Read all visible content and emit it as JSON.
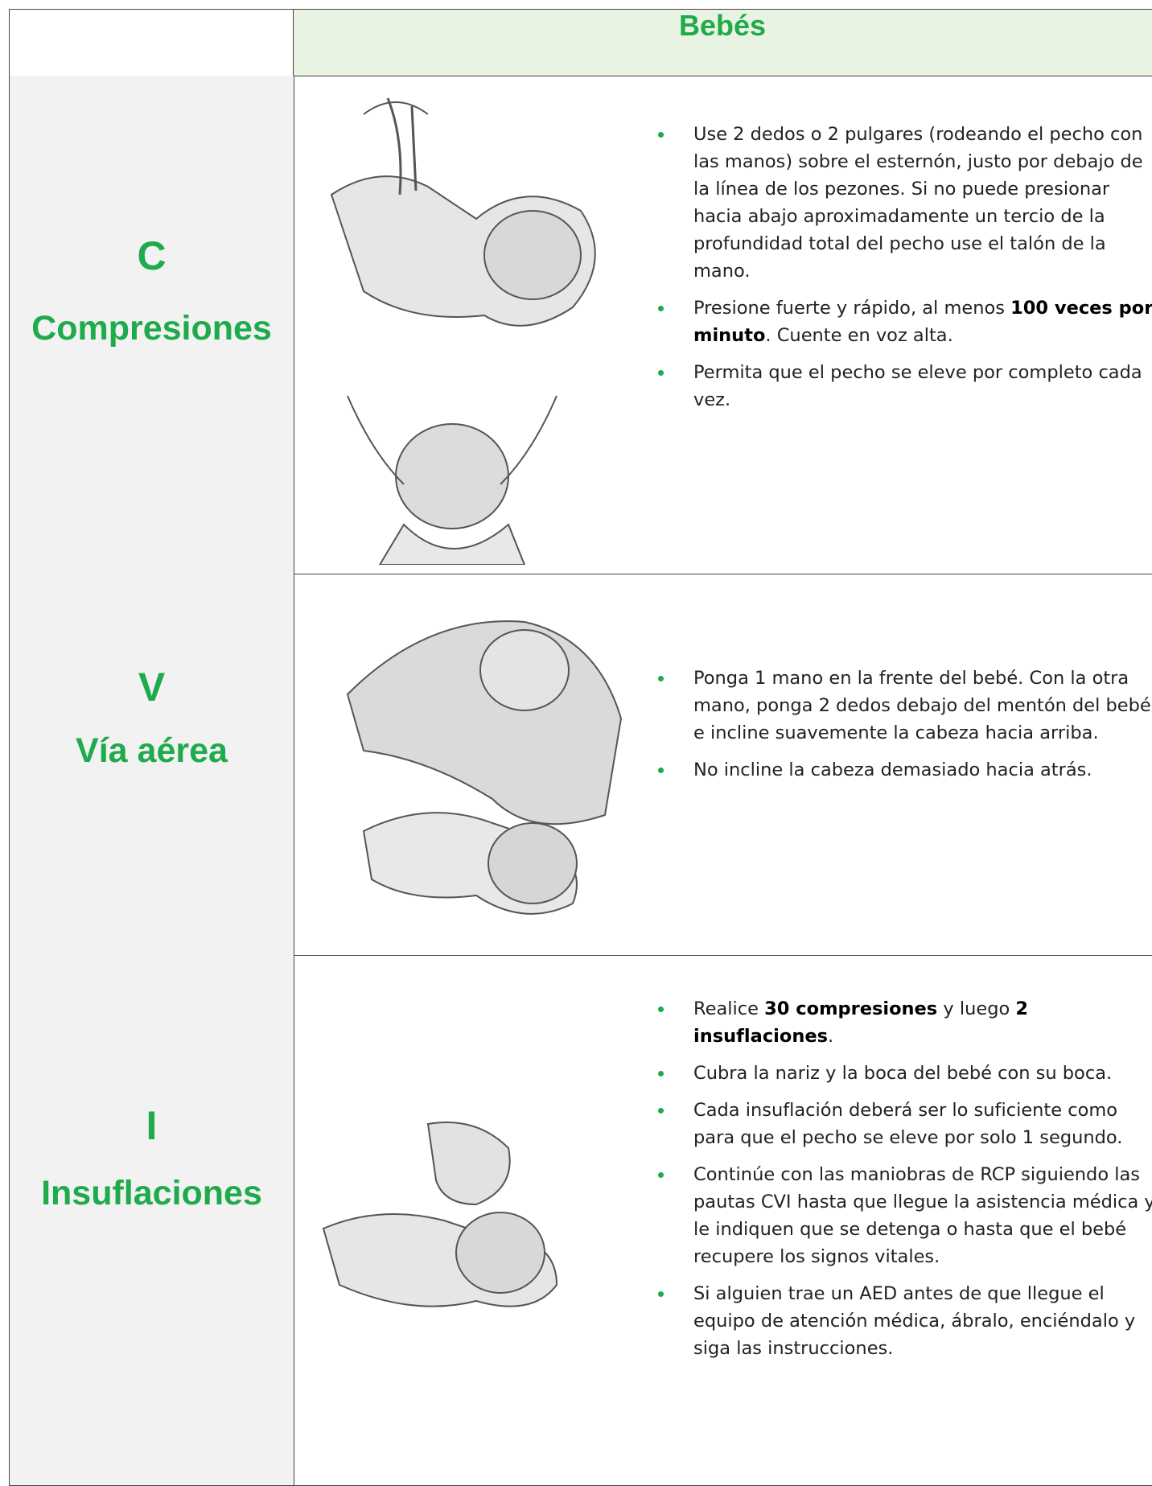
{
  "header": {
    "title": "Bebés"
  },
  "rows": [
    {
      "letter": "C",
      "label": "Compresiones",
      "bullets": [
        [
          {
            "text": "Use 2 dedos o 2 pulgares (rodeando el pecho con las manos) sobre el esternón, justo por debajo de la línea de los pezones. Si no puede presionar hacia abajo aproximadamente un tercio de la profundidad total del pecho use el talón de la mano."
          }
        ],
        [
          {
            "text": "Presione fuerte y rápido, al menos "
          },
          {
            "text": "100 veces por minuto",
            "bold": true
          },
          {
            "text": ". Cuente en voz alta."
          }
        ],
        [
          {
            "text": "Permita que el pecho se eleve por completo cada vez."
          }
        ]
      ]
    },
    {
      "letter": "V",
      "label": "Vía aérea",
      "bullets": [
        [
          {
            "text": "Ponga 1 mano en la frente del bebé. Con la otra mano, ponga 2 dedos debajo del mentón del bebé e incline suavemente la cabeza hacia arriba."
          }
        ],
        [
          {
            "text": "No incline la cabeza demasiado hacia atrás."
          }
        ]
      ]
    },
    {
      "letter": "I",
      "label": "Insuflaciones",
      "bullets": [
        [
          {
            "text": "Realice "
          },
          {
            "text": "30 compresiones",
            "bold": true
          },
          {
            "text": " y luego "
          },
          {
            "text": "2 insuflaciones",
            "bold": true
          },
          {
            "text": "."
          }
        ],
        [
          {
            "text": "Cubra la nariz y la boca del bebé con su boca."
          }
        ],
        [
          {
            "text": "Cada insuflación deberá ser lo suficiente como para que el pecho se eleve por solo 1 segundo."
          }
        ],
        [
          {
            "text": "Continúe con las maniobras de RCP siguiendo las pautas CVI hasta que llegue la asistencia médica y le indiquen que se detenga o hasta que el bebé recupere los signos vitales."
          }
        ],
        [
          {
            "text": "Si alguien trae un AED antes de que llegue el equipo de atención médica, ábralo, enciéndalo y siga las instrucciones."
          }
        ]
      ]
    }
  ]
}
